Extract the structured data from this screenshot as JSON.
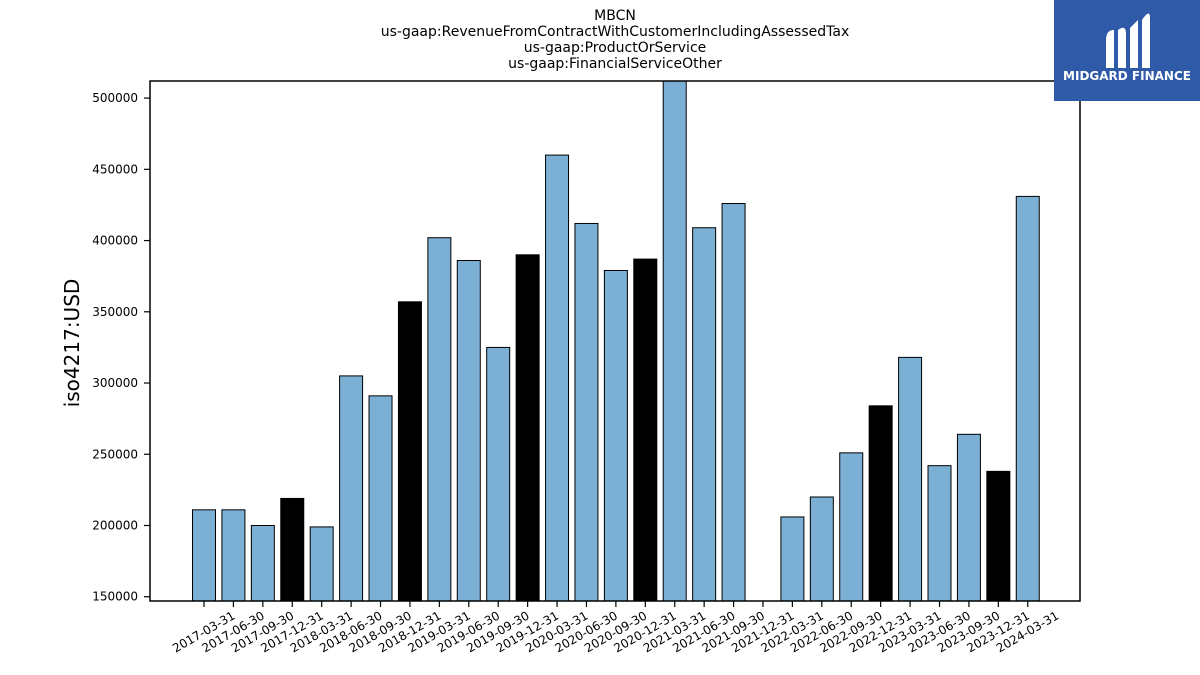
{
  "chart_data": {
    "type": "bar",
    "title": [
      "MBCN",
      "us-gaap:RevenueFromContractWithCustomerIncludingAssessedTax",
      "us-gaap:ProductOrService",
      "us-gaap:FinancialServiceOther"
    ],
    "xlabel": "",
    "ylabel": "iso4217:USD",
    "ylim": [
      147000,
      512000
    ],
    "yticks": [
      150000,
      200000,
      250000,
      300000,
      350000,
      400000,
      450000,
      500000
    ],
    "grid": false,
    "colors": {
      "quarter": "#7bafd4",
      "year_end": "#000000",
      "edge": "#000000"
    },
    "categories": [
      "2017-03-31",
      "2017-06-30",
      "2017-09-30",
      "2017-12-31",
      "2018-03-31",
      "2018-06-30",
      "2018-09-30",
      "2018-12-31",
      "2019-03-31",
      "2019-06-30",
      "2019-09-30",
      "2019-12-31",
      "2020-03-31",
      "2020-06-30",
      "2020-09-30",
      "2020-12-31",
      "2021-03-31",
      "2021-06-30",
      "2021-09-30",
      "2021-12-31",
      "2022-03-31",
      "2022-06-30",
      "2022-09-30",
      "2022-12-31",
      "2023-03-31",
      "2023-06-30",
      "2023-09-30",
      "2023-12-31",
      "2024-03-31"
    ],
    "values": [
      211000,
      211000,
      200000,
      219000,
      199000,
      305000,
      291000,
      357000,
      402000,
      386000,
      325000,
      390000,
      460000,
      412000,
      379000,
      387000,
      512000,
      409000,
      426000,
      null,
      206000,
      220000,
      251000,
      284000,
      318000,
      242000,
      264000,
      238000,
      431000
    ],
    "year_end": [
      false,
      false,
      false,
      true,
      false,
      false,
      false,
      true,
      false,
      false,
      false,
      true,
      false,
      false,
      false,
      true,
      false,
      false,
      false,
      true,
      false,
      false,
      false,
      true,
      false,
      false,
      false,
      true,
      false
    ]
  },
  "logo": {
    "text": "MIDGARD FINANCE",
    "icon": "stylized-M-logo-icon",
    "background": "#2f5aa8"
  }
}
